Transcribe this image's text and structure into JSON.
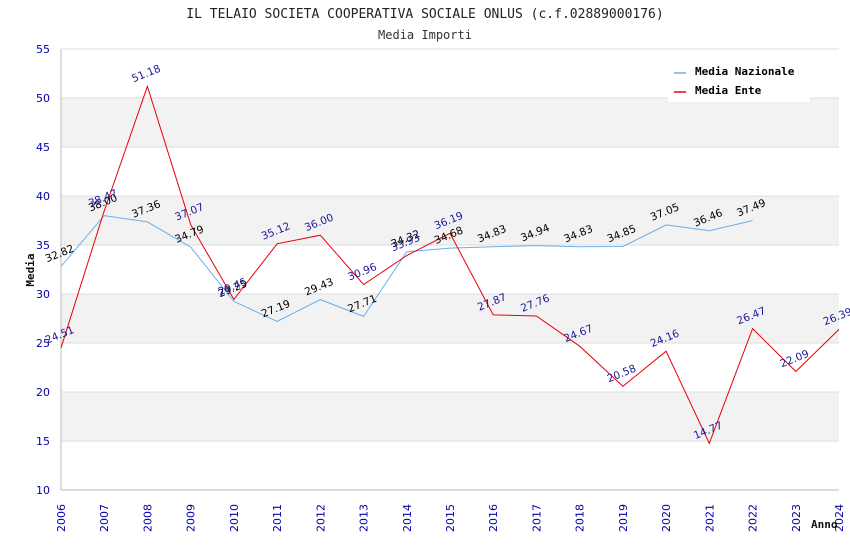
{
  "chart_data": {
    "type": "line",
    "title": "IL TELAIO SOCIETA COOPERATIVA SOCIALE ONLUS (c.f.02889000176)",
    "subtitle": "Media Importi",
    "xlabel": "Anno",
    "ylabel": "Media",
    "ylim": [
      10,
      55
    ],
    "yticks": [
      "10",
      "15",
      "20",
      "25",
      "30",
      "35",
      "40",
      "45",
      "50",
      "55"
    ],
    "x": [
      "2006",
      "2007",
      "2008",
      "2009",
      "2010",
      "2011",
      "2012",
      "2013",
      "2014",
      "2015",
      "2016",
      "2017",
      "2018",
      "2019",
      "2020",
      "2021",
      "2022",
      "2023",
      "2024"
    ],
    "grid": true,
    "legend_position": "top-right",
    "series": [
      {
        "name": "Media Nazionale",
        "color": "#6aaee8",
        "values": [
          32.82,
          38.0,
          37.36,
          34.79,
          29.25,
          27.19,
          29.43,
          27.71,
          34.32,
          34.68,
          34.83,
          34.94,
          34.83,
          34.85,
          37.05,
          36.46,
          37.49,
          null,
          null
        ],
        "labels": [
          "32.82",
          "38.00",
          "37.36",
          "34.79",
          "29.25",
          "27.19",
          "29.43",
          "27.71",
          "34.32",
          "34.68",
          "34.83",
          "34.94",
          "34.83",
          "34.85",
          "37.05",
          "36.46",
          "37.49",
          null,
          null
        ]
      },
      {
        "name": "Media Ente",
        "color": "#e8000b",
        "values": [
          24.51,
          38.47,
          51.18,
          37.07,
          29.45,
          35.12,
          36.0,
          30.96,
          33.93,
          36.19,
          27.87,
          27.76,
          24.67,
          20.58,
          24.16,
          14.77,
          26.47,
          22.09,
          26.39
        ],
        "labels": [
          "24.51",
          "38.47",
          "51.18",
          "37.07",
          "29.45",
          "35.12",
          "36.00",
          "30.96",
          "33.93",
          "36.19",
          "27.87",
          "27.76",
          "24.67",
          "20.58",
          "24.16",
          "14.77",
          "26.47",
          "22.09",
          "26.39"
        ]
      }
    ]
  }
}
